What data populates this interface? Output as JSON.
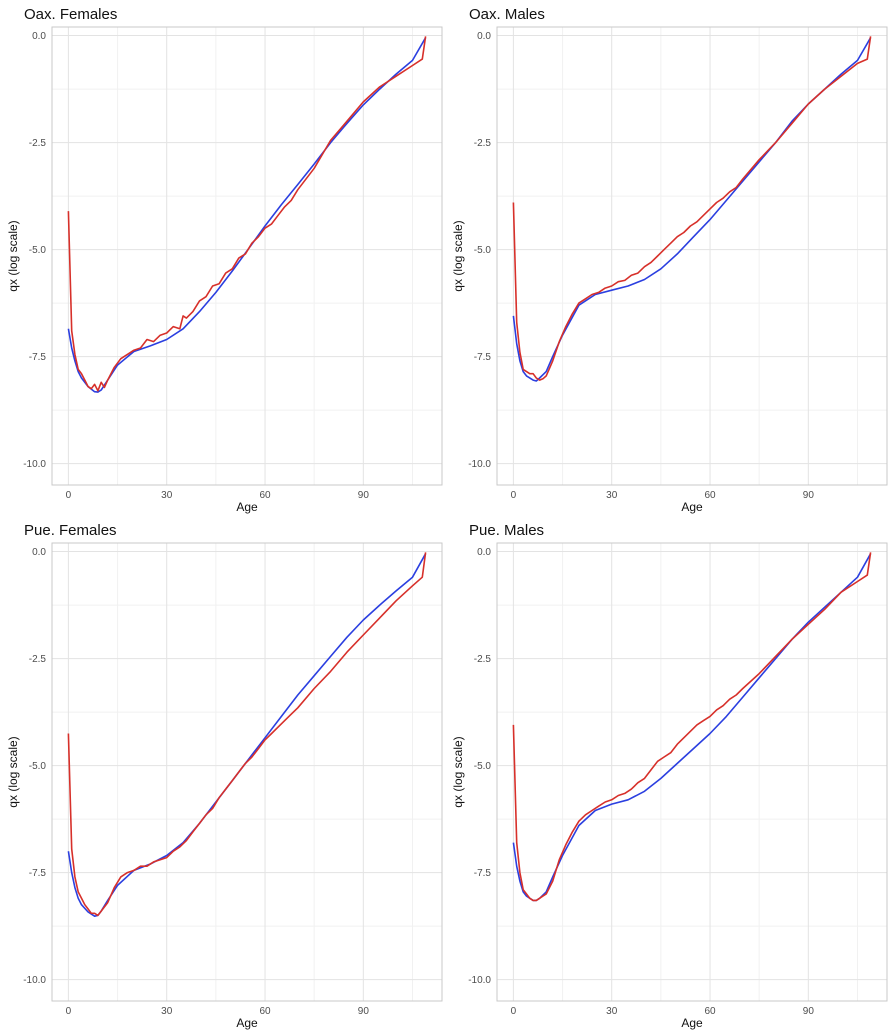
{
  "colors": {
    "red_series": "#d7302a",
    "blue_series": "#2b3fe0",
    "grid_major": "#e3e3e3",
    "grid_minor": "#f1f1f1",
    "panel_border": "#c9c9c9"
  },
  "chart_data": [
    {
      "type": "line",
      "title": "Oax. Females",
      "xlabel": "Age",
      "ylabel": "qx (log scale)",
      "xlim": [
        -5,
        114
      ],
      "ylim": [
        -10.5,
        0.2
      ],
      "xticks": [
        0,
        30,
        60,
        90
      ],
      "xtick_labels": [
        "0",
        "30",
        "60",
        "90"
      ],
      "yticks": [
        0,
        -2.5,
        -5,
        -7.5,
        -10
      ],
      "ytick_labels": [
        "0.0",
        "-2.5",
        "-5.0",
        "-7.5",
        "-10.0"
      ],
      "grid": true,
      "series": [
        {
          "color": "#2b3fe0",
          "x": [
            0,
            1,
            2,
            3,
            4,
            6,
            8,
            9,
            10,
            12,
            15,
            20,
            25,
            30,
            35,
            40,
            45,
            50,
            55,
            60,
            65,
            70,
            75,
            80,
            85,
            90,
            95,
            100,
            105,
            109
          ],
          "y": [
            -6.85,
            -7.3,
            -7.6,
            -7.85,
            -8.0,
            -8.2,
            -8.32,
            -8.33,
            -8.28,
            -8.05,
            -7.7,
            -7.38,
            -7.25,
            -7.1,
            -6.85,
            -6.45,
            -6.0,
            -5.5,
            -4.98,
            -4.45,
            -3.95,
            -3.48,
            -3.0,
            -2.5,
            -2.05,
            -1.62,
            -1.25,
            -0.9,
            -0.58,
            -0.05
          ]
        },
        {
          "color": "#d7302a",
          "x": [
            0,
            1,
            2,
            3,
            4,
            5,
            6,
            7,
            8,
            9,
            10,
            11,
            12,
            14,
            16,
            18,
            20,
            22,
            24,
            26,
            28,
            30,
            32,
            34,
            35,
            36,
            38,
            40,
            42,
            44,
            46,
            48,
            50,
            52,
            54,
            56,
            58,
            60,
            62,
            64,
            66,
            68,
            70,
            75,
            80,
            85,
            90,
            95,
            100,
            105,
            108,
            109
          ],
          "y": [
            -4.1,
            -6.9,
            -7.45,
            -7.8,
            -7.9,
            -8.05,
            -8.2,
            -8.25,
            -8.15,
            -8.3,
            -8.1,
            -8.22,
            -8.05,
            -7.75,
            -7.55,
            -7.45,
            -7.35,
            -7.3,
            -7.1,
            -7.15,
            -7.0,
            -6.95,
            -6.8,
            -6.85,
            -6.55,
            -6.6,
            -6.45,
            -6.2,
            -6.1,
            -5.85,
            -5.8,
            -5.55,
            -5.45,
            -5.2,
            -5.1,
            -4.85,
            -4.7,
            -4.5,
            -4.4,
            -4.2,
            -4.0,
            -3.85,
            -3.6,
            -3.1,
            -2.45,
            -2.0,
            -1.55,
            -1.2,
            -0.95,
            -0.7,
            -0.55,
            -0.02
          ]
        }
      ]
    },
    {
      "type": "line",
      "title": "Oax. Males",
      "xlabel": "Age",
      "ylabel": "qx (log scale)",
      "xlim": [
        -5,
        114
      ],
      "ylim": [
        -10.5,
        0.2
      ],
      "xticks": [
        0,
        30,
        60,
        90
      ],
      "xtick_labels": [
        "0",
        "30",
        "60",
        "90"
      ],
      "yticks": [
        0,
        -2.5,
        -5,
        -7.5,
        -10
      ],
      "ytick_labels": [
        "0.0",
        "-2.5",
        "-5.0",
        "-7.5",
        "-10.0"
      ],
      "grid": true,
      "series": [
        {
          "color": "#2b3fe0",
          "x": [
            0,
            1,
            2,
            3,
            4,
            6,
            7,
            8,
            10,
            12,
            15,
            20,
            25,
            30,
            35,
            40,
            45,
            50,
            55,
            60,
            65,
            70,
            75,
            80,
            85,
            90,
            95,
            100,
            105,
            109
          ],
          "y": [
            -6.55,
            -7.2,
            -7.6,
            -7.85,
            -7.95,
            -8.05,
            -8.07,
            -8.0,
            -7.85,
            -7.5,
            -7.0,
            -6.3,
            -6.05,
            -5.95,
            -5.85,
            -5.7,
            -5.45,
            -5.1,
            -4.7,
            -4.3,
            -3.85,
            -3.4,
            -2.95,
            -2.5,
            -2.0,
            -1.6,
            -1.25,
            -0.9,
            -0.58,
            -0.05
          ]
        },
        {
          "color": "#d7302a",
          "x": [
            0,
            1,
            2,
            3,
            4,
            5,
            6,
            7,
            8,
            9,
            10,
            12,
            14,
            16,
            18,
            20,
            22,
            24,
            26,
            28,
            30,
            32,
            34,
            36,
            38,
            40,
            42,
            44,
            46,
            48,
            50,
            52,
            54,
            56,
            58,
            60,
            62,
            64,
            66,
            68,
            70,
            75,
            80,
            85,
            90,
            95,
            100,
            105,
            108,
            109
          ],
          "y": [
            -3.9,
            -6.7,
            -7.4,
            -7.8,
            -7.85,
            -7.9,
            -7.9,
            -8.0,
            -8.05,
            -8.02,
            -7.95,
            -7.6,
            -7.15,
            -6.8,
            -6.5,
            -6.25,
            -6.15,
            -6.05,
            -6.0,
            -5.9,
            -5.85,
            -5.75,
            -5.72,
            -5.6,
            -5.55,
            -5.4,
            -5.3,
            -5.15,
            -5.0,
            -4.85,
            -4.7,
            -4.6,
            -4.45,
            -4.35,
            -4.2,
            -4.05,
            -3.9,
            -3.8,
            -3.65,
            -3.55,
            -3.35,
            -2.9,
            -2.5,
            -2.05,
            -1.6,
            -1.25,
            -0.95,
            -0.65,
            -0.55,
            -0.02
          ]
        }
      ]
    },
    {
      "type": "line",
      "title": "Pue. Females",
      "xlabel": "Age",
      "ylabel": "qx (log scale)",
      "xlim": [
        -5,
        114
      ],
      "ylim": [
        -10.5,
        0.2
      ],
      "xticks": [
        0,
        30,
        60,
        90
      ],
      "xtick_labels": [
        "0",
        "30",
        "60",
        "90"
      ],
      "yticks": [
        0,
        -2.5,
        -5,
        -7.5,
        -10
      ],
      "ytick_labels": [
        "0.0",
        "-2.5",
        "-5.0",
        "-7.5",
        "-10.0"
      ],
      "grid": true,
      "series": [
        {
          "color": "#2b3fe0",
          "x": [
            0,
            1,
            2,
            3,
            4,
            6,
            8,
            9,
            10,
            12,
            15,
            20,
            25,
            30,
            35,
            40,
            45,
            50,
            55,
            60,
            65,
            70,
            75,
            80,
            85,
            90,
            95,
            100,
            105,
            109
          ],
          "y": [
            -7.0,
            -7.5,
            -7.85,
            -8.1,
            -8.25,
            -8.42,
            -8.52,
            -8.5,
            -8.4,
            -8.15,
            -7.8,
            -7.45,
            -7.3,
            -7.1,
            -6.8,
            -6.35,
            -5.85,
            -5.35,
            -4.85,
            -4.35,
            -3.85,
            -3.35,
            -2.9,
            -2.45,
            -2.0,
            -1.6,
            -1.25,
            -0.92,
            -0.6,
            -0.05
          ]
        },
        {
          "color": "#d7302a",
          "x": [
            0,
            1,
            2,
            3,
            4,
            5,
            6,
            7,
            8,
            9,
            10,
            12,
            14,
            16,
            18,
            20,
            22,
            24,
            26,
            28,
            30,
            32,
            34,
            36,
            38,
            40,
            42,
            44,
            46,
            48,
            50,
            52,
            54,
            56,
            58,
            60,
            62,
            64,
            66,
            68,
            70,
            75,
            80,
            85,
            90,
            95,
            100,
            105,
            108,
            109
          ],
          "y": [
            -4.25,
            -6.95,
            -7.6,
            -7.95,
            -8.1,
            -8.25,
            -8.35,
            -8.45,
            -8.45,
            -8.5,
            -8.4,
            -8.2,
            -7.85,
            -7.6,
            -7.5,
            -7.45,
            -7.35,
            -7.35,
            -7.25,
            -7.2,
            -7.15,
            -7.0,
            -6.9,
            -6.75,
            -6.55,
            -6.35,
            -6.15,
            -6.0,
            -5.75,
            -5.55,
            -5.35,
            -5.15,
            -4.95,
            -4.8,
            -4.6,
            -4.4,
            -4.25,
            -4.1,
            -3.95,
            -3.8,
            -3.65,
            -3.2,
            -2.8,
            -2.35,
            -1.95,
            -1.55,
            -1.15,
            -0.8,
            -0.6,
            -0.02
          ]
        }
      ]
    },
    {
      "type": "line",
      "title": "Pue. Males",
      "xlabel": "Age",
      "ylabel": "qx (log scale)",
      "xlim": [
        -5,
        114
      ],
      "ylim": [
        -10.5,
        0.2
      ],
      "xticks": [
        0,
        30,
        60,
        90
      ],
      "xtick_labels": [
        "0",
        "30",
        "60",
        "90"
      ],
      "yticks": [
        0,
        -2.5,
        -5,
        -7.5,
        -10
      ],
      "ytick_labels": [
        "0.0",
        "-2.5",
        "-5.0",
        "-7.5",
        "-10.0"
      ],
      "grid": true,
      "series": [
        {
          "color": "#2b3fe0",
          "x": [
            0,
            1,
            2,
            3,
            4,
            6,
            7,
            8,
            10,
            12,
            15,
            20,
            25,
            30,
            35,
            40,
            45,
            50,
            55,
            60,
            65,
            70,
            75,
            80,
            85,
            90,
            95,
            100,
            105,
            109
          ],
          "y": [
            -6.8,
            -7.35,
            -7.7,
            -7.95,
            -8.05,
            -8.15,
            -8.15,
            -8.1,
            -7.95,
            -7.6,
            -7.1,
            -6.4,
            -6.05,
            -5.9,
            -5.8,
            -5.6,
            -5.3,
            -4.95,
            -4.6,
            -4.25,
            -3.85,
            -3.4,
            -2.95,
            -2.5,
            -2.05,
            -1.65,
            -1.3,
            -0.95,
            -0.6,
            -0.05
          ]
        },
        {
          "color": "#d7302a",
          "x": [
            0,
            1,
            2,
            3,
            4,
            5,
            6,
            7,
            8,
            9,
            10,
            12,
            14,
            16,
            18,
            20,
            22,
            24,
            26,
            28,
            30,
            32,
            34,
            36,
            38,
            40,
            42,
            44,
            46,
            48,
            50,
            52,
            54,
            56,
            58,
            60,
            62,
            64,
            66,
            68,
            70,
            75,
            80,
            85,
            90,
            95,
            100,
            105,
            108,
            109
          ],
          "y": [
            -4.05,
            -6.8,
            -7.5,
            -7.9,
            -8.0,
            -8.1,
            -8.15,
            -8.15,
            -8.1,
            -8.05,
            -8.0,
            -7.7,
            -7.2,
            -6.85,
            -6.55,
            -6.3,
            -6.15,
            -6.05,
            -5.95,
            -5.85,
            -5.8,
            -5.7,
            -5.65,
            -5.55,
            -5.4,
            -5.3,
            -5.1,
            -4.9,
            -4.8,
            -4.7,
            -4.5,
            -4.35,
            -4.2,
            -4.05,
            -3.95,
            -3.85,
            -3.7,
            -3.6,
            -3.45,
            -3.35,
            -3.2,
            -2.85,
            -2.45,
            -2.05,
            -1.7,
            -1.35,
            -0.95,
            -0.7,
            -0.55,
            -0.02
          ]
        }
      ]
    }
  ]
}
